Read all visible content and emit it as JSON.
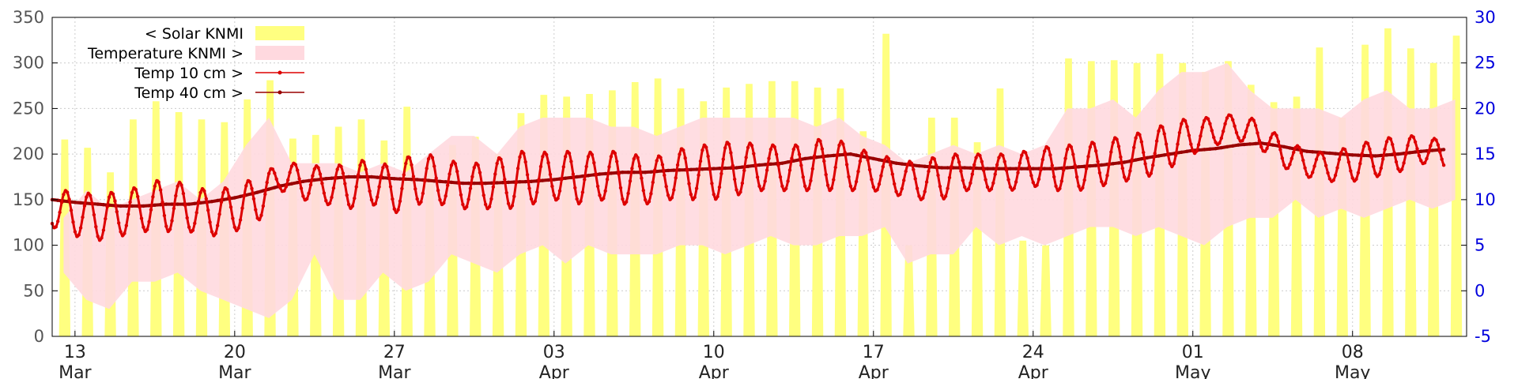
{
  "chart_data": {
    "type": "line",
    "title": "",
    "left_axis": {
      "range": [
        0,
        350
      ],
      "ticks": [
        0,
        50,
        100,
        150,
        200,
        250,
        300,
        350
      ],
      "color": "#555555"
    },
    "right_axis": {
      "range": [
        -5,
        30
      ],
      "ticks": [
        -5,
        0,
        5,
        10,
        15,
        20,
        25,
        30
      ],
      "color": "#0000dd"
    },
    "x_axis": {
      "range_days": [
        0,
        62
      ],
      "ticks": [
        {
          "day": 1,
          "date": "13",
          "month": "Mar"
        },
        {
          "day": 8,
          "date": "20",
          "month": "Mar"
        },
        {
          "day": 15,
          "date": "27",
          "month": "Mar"
        },
        {
          "day": 22,
          "date": "03",
          "month": "Apr"
        },
        {
          "day": 29,
          "date": "10",
          "month": "Apr"
        },
        {
          "day": 36,
          "date": "17",
          "month": "Apr"
        },
        {
          "day": 43,
          "date": "24",
          "month": "Apr"
        },
        {
          "day": 50,
          "date": "01",
          "month": "May"
        },
        {
          "day": 57,
          "date": "08",
          "month": "May"
        }
      ]
    },
    "grid": true,
    "legend_position": "top-left",
    "colors": {
      "solar": "#ffff80",
      "temperature_band": "#ffd9df",
      "temp10": "#dd0000",
      "temp40": "#990000",
      "grid": "#cccccc"
    },
    "series": [
      {
        "name": "< Solar KNMI",
        "axis": "left",
        "kind": "daily_peak",
        "daily_peaks": [
          216,
          207,
          180,
          238,
          258,
          246,
          238,
          235,
          260,
          281,
          217,
          221,
          230,
          238,
          215,
          252,
          195,
          210,
          219,
          200,
          245,
          265,
          263,
          266,
          270,
          279,
          283,
          272,
          258,
          273,
          277,
          280,
          280,
          273,
          272,
          225,
          332,
          100,
          240,
          240,
          213,
          272,
          105,
          100,
          305,
          302,
          303,
          300,
          310,
          300,
          290,
          302,
          276,
          257,
          263,
          317,
          240,
          320,
          338,
          316,
          300,
          330
        ]
      },
      {
        "name": "Temperature KNMI >",
        "axis": "right",
        "kind": "band",
        "daily_min": [
          2,
          -1,
          -2,
          1,
          1,
          2,
          0,
          -1,
          -2,
          -3,
          -1,
          4,
          -1,
          -1,
          2,
          0,
          1,
          4,
          3,
          2,
          4,
          5,
          3,
          5,
          4,
          4,
          4,
          5,
          5,
          4,
          5,
          6,
          5,
          5,
          6,
          6,
          7,
          3,
          4,
          4,
          7,
          5,
          6,
          5,
          6,
          7,
          7,
          6,
          7,
          6,
          5,
          7,
          8,
          8,
          10,
          8,
          9,
          8,
          9,
          10,
          9,
          10
        ],
        "daily_max": [
          8,
          11,
          9,
          10,
          11,
          12,
          10,
          12,
          16,
          19,
          14,
          14,
          14,
          13,
          14,
          13,
          15,
          17,
          17,
          15,
          18,
          19,
          19,
          19,
          18,
          18,
          17,
          18,
          19,
          19,
          19,
          19,
          19,
          18,
          19,
          17,
          16,
          14,
          15,
          16,
          15,
          16,
          15,
          16,
          20,
          20,
          21,
          19,
          22,
          24,
          24,
          25,
          22,
          20,
          20,
          20,
          19,
          21,
          22,
          20,
          20,
          21
        ]
      },
      {
        "name": "Temp 10 cm >",
        "axis": "right",
        "kind": "daily_cycle",
        "daily_mean": [
          9.0,
          8.5,
          8.0,
          8.5,
          9.0,
          9.5,
          9.0,
          8.5,
          9.0,
          10.0,
          12.5,
          12.0,
          11.5,
          11.5,
          12.0,
          11.0,
          12.5,
          12.0,
          11.5,
          11.5,
          12.0,
          12.5,
          12.5,
          12.5,
          12.5,
          12.5,
          12.0,
          12.5,
          13.0,
          13.0,
          13.5,
          13.5,
          13.5,
          13.5,
          14.0,
          13.5,
          13.0,
          12.5,
          12.0,
          12.5,
          13.0,
          13.0,
          13.0,
          13.5,
          13.5,
          13.5,
          14.0,
          14.5,
          15.0,
          16.0,
          17.0,
          17.5,
          18.0,
          17.0,
          15.0,
          14.0,
          13.5,
          14.0,
          14.5,
          15.0,
          15.5,
          15.0
        ],
        "daily_amp": [
          2.0,
          2.5,
          2.5,
          2.5,
          2.5,
          3.0,
          2.5,
          2.5,
          2.5,
          2.5,
          1.5,
          2.0,
          2.0,
          2.5,
          2.5,
          2.5,
          3.0,
          2.5,
          2.5,
          2.5,
          3.0,
          3.0,
          2.5,
          3.0,
          2.5,
          3.0,
          2.5,
          2.5,
          3.0,
          3.0,
          3.0,
          2.5,
          2.5,
          2.5,
          3.0,
          2.5,
          2.0,
          2.0,
          2.0,
          2.5,
          2.0,
          2.0,
          2.0,
          2.0,
          2.5,
          2.5,
          2.5,
          2.5,
          2.5,
          2.5,
          2.0,
          1.5,
          1.5,
          1.5,
          1.5,
          1.5,
          1.5,
          2.0,
          2.0,
          2.0,
          1.5,
          1.5
        ]
      },
      {
        "name": "Temp 40 cm >",
        "axis": "right",
        "kind": "smooth",
        "daily_mean": [
          10.0,
          9.7,
          9.5,
          9.3,
          9.3,
          9.5,
          9.5,
          9.8,
          10.2,
          10.8,
          11.5,
          12.0,
          12.3,
          12.5,
          12.5,
          12.3,
          12.2,
          12.0,
          11.8,
          11.8,
          11.9,
          12.0,
          12.2,
          12.5,
          12.8,
          13.0,
          13.0,
          13.2,
          13.3,
          13.4,
          13.5,
          13.8,
          14.0,
          14.5,
          14.8,
          15.0,
          14.5,
          14.0,
          13.7,
          13.5,
          13.5,
          13.4,
          13.4,
          13.4,
          13.4,
          13.6,
          13.8,
          14.1,
          14.6,
          15.0,
          15.4,
          15.6,
          16.0,
          16.2,
          15.8,
          15.3,
          15.1,
          14.9,
          14.8,
          15.0,
          15.3,
          15.5
        ]
      }
    ]
  }
}
